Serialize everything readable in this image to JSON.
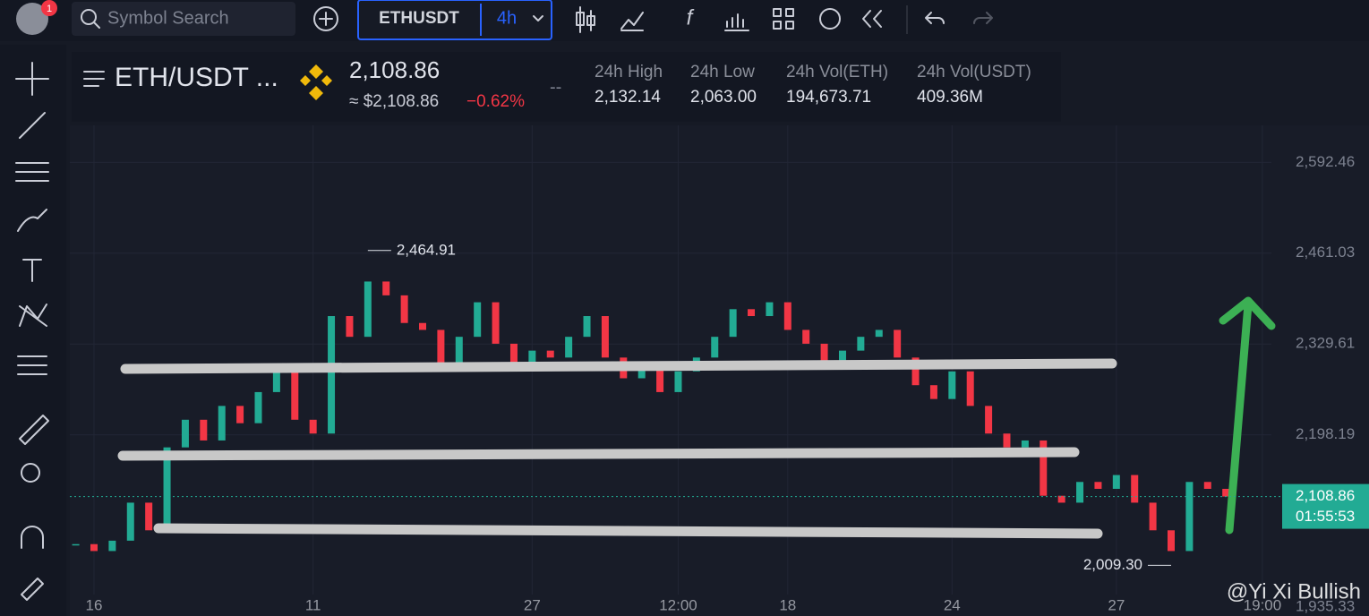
{
  "toolbar": {
    "notifications": "1",
    "search_placeholder": "Symbol Search",
    "symbol": "ETHUSDT",
    "interval": "4h"
  },
  "header": {
    "pair": "ETH/USDT ...",
    "price": "2,108.86",
    "price_usd": "≈ $2,108.86",
    "change": "−0.62%",
    "placeholder": "--",
    "stats": [
      {
        "label": "24h High",
        "value": "2,132.14"
      },
      {
        "label": "24h Low",
        "value": "2,063.00"
      },
      {
        "label": "24h Vol(ETH)",
        "value": "194,673.71"
      },
      {
        "label": "24h Vol(USDT)",
        "value": "409.36M"
      }
    ]
  },
  "chart_data": {
    "type": "candlestick",
    "categories": [
      null,
      "16",
      null,
      null,
      null,
      null,
      null,
      null,
      null,
      null,
      null,
      null,
      null,
      "11",
      null,
      null,
      null,
      null,
      null,
      null,
      null,
      null,
      null,
      null,
      null,
      "27",
      null,
      null,
      null,
      null,
      null,
      null,
      null,
      "12:00",
      null,
      null,
      null,
      null,
      null,
      "18",
      null,
      null,
      null,
      null,
      null,
      null,
      null,
      null,
      "24",
      null,
      null,
      null,
      null,
      null,
      null,
      null,
      null,
      "27",
      null,
      null,
      null,
      null,
      null,
      null,
      null,
      "19:00"
    ],
    "values": [
      2040,
      2030,
      2045,
      2100,
      2060,
      2180,
      2220,
      2190,
      2240,
      2215,
      2260,
      2300,
      2220,
      2200,
      2370,
      2340,
      2420,
      2400,
      2360,
      2350,
      2300,
      2340,
      2390,
      2330,
      2300,
      2320,
      2310,
      2340,
      2370,
      2310,
      2280,
      2300,
      2260,
      2290,
      2310,
      2340,
      2380,
      2370,
      2390,
      2350,
      2330,
      2300,
      2320,
      2340,
      2350,
      2310,
      2270,
      2250,
      2290,
      2240,
      2200,
      2180,
      2190,
      2110,
      2100,
      2130,
      2120,
      2140,
      2100,
      2060,
      2030,
      2130,
      2120,
      2108.86,
      null,
      null
    ],
    "up_color": "#22ab94",
    "down_color": "#f23645",
    "ylim": [
      1936,
      2646
    ],
    "yticks": [
      {
        "value": 2592.46,
        "label": "2,592.46"
      },
      {
        "value": 2461.03,
        "label": "2,461.03"
      },
      {
        "value": 2329.61,
        "label": "2,329.61"
      },
      {
        "value": 2198.19,
        "label": "2,198.19"
      },
      {
        "value": 1935.33,
        "label": "1,935.33"
      }
    ],
    "grid": true,
    "annotations": [
      {
        "x": 16,
        "y": {
          "value": 2464.91,
          "label": "2,464.91"
        }
      },
      {
        "x": 60,
        "y": {
          "value": 2009.3,
          "label": "2,009.30"
        }
      }
    ],
    "last_price": {
      "value": 2108.86,
      "label": "2,108.86"
    },
    "countdown": "01:55:53"
  },
  "watermark": "@Yi Xi Bullish"
}
